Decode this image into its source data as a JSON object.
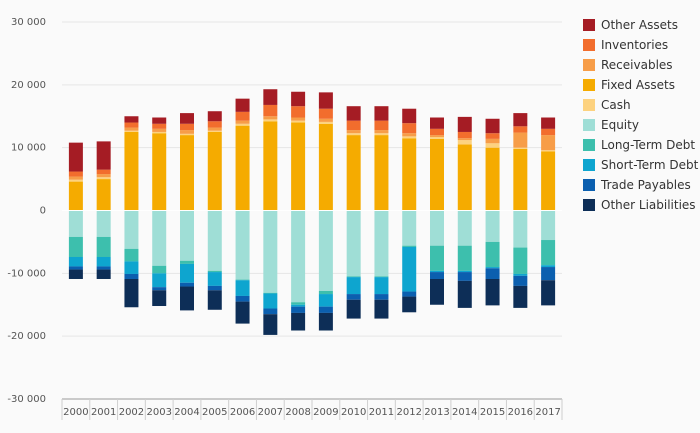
{
  "chart_data": {
    "type": "bar",
    "stacked": true,
    "categories": [
      "2000",
      "2001",
      "2002",
      "2003",
      "2004",
      "2005",
      "2006",
      "2007",
      "2008",
      "2009",
      "2010",
      "2011",
      "2012",
      "2013",
      "2014",
      "2015",
      "2016",
      "2017"
    ],
    "ylim": [
      -30000,
      30000
    ],
    "yticks": [
      -30000,
      -20000,
      -10000,
      0,
      10000,
      20000,
      30000
    ],
    "ytick_labels": [
      "-30 000",
      "-20 000",
      "-10 000",
      "0",
      "10 000",
      "20 000",
      "30 000"
    ],
    "grid": true,
    "legend_position": "right",
    "legend_order": [
      "Other Assets",
      "Inventories",
      "Receivables",
      "Fixed Assets",
      "Cash",
      "Equity",
      "Long-Term Debt",
      "Short-Term Debt",
      "Trade Payables",
      "Other Liabilities"
    ],
    "positive_series": [
      {
        "name": "Fixed Assets",
        "color": "#f5ab00",
        "values": [
          4600,
          5000,
          12500,
          12300,
          12000,
          12500,
          13500,
          14200,
          14000,
          13800,
          12000,
          12000,
          11500,
          11400,
          10500,
          10000,
          9800,
          9400
        ]
      },
      {
        "name": "Cash",
        "color": "#fdd27f",
        "values": [
          300,
          300,
          200,
          200,
          200,
          200,
          300,
          300,
          300,
          300,
          300,
          300,
          300,
          300,
          700,
          700,
          200,
          200
        ]
      },
      {
        "name": "Receivables",
        "color": "#f79d48",
        "values": [
          500,
          500,
          500,
          500,
          600,
          500,
          500,
          500,
          500,
          500,
          500,
          500,
          500,
          300,
          300,
          700,
          2400,
          2400
        ]
      },
      {
        "name": "Inventories",
        "color": "#f26d2d",
        "values": [
          800,
          700,
          800,
          800,
          1000,
          1000,
          1400,
          1800,
          1800,
          1600,
          1500,
          1500,
          1600,
          1000,
          1000,
          900,
          1000,
          1000
        ]
      },
      {
        "name": "Other Assets",
        "color": "#a51c24",
        "values": [
          4600,
          4500,
          1000,
          1000,
          1700,
          1600,
          2100,
          2500,
          2300,
          2600,
          2300,
          2300,
          2300,
          1800,
          2400,
          2300,
          2100,
          1800
        ]
      }
    ],
    "negative_series": [
      {
        "name": "Equity",
        "color": "#9fded6",
        "values": [
          -4200,
          -4200,
          -6100,
          -8800,
          -8000,
          -9600,
          -11000,
          -13100,
          -14600,
          -12800,
          -10500,
          -10500,
          -5600,
          -5600,
          -5600,
          -5000,
          -5900,
          -4700
        ]
      },
      {
        "name": "Long-Term Debt",
        "color": "#3dbfad",
        "values": [
          -3200,
          -3200,
          -2000,
          -1200,
          -500,
          -200,
          -100,
          -100,
          -400,
          -500,
          -100,
          -100,
          -200,
          -4000,
          -4000,
          -4000,
          -4200,
          -4000
        ]
      },
      {
        "name": "Short-Term Debt",
        "color": "#0ea5cf",
        "values": [
          -1500,
          -1500,
          -2000,
          -2200,
          -3000,
          -2200,
          -2500,
          -2400,
          -300,
          -2000,
          -2700,
          -2700,
          -7100,
          -200,
          -200,
          -200,
          -300,
          -300
        ]
      },
      {
        "name": "Trade Payables",
        "color": "#0b5faf",
        "values": [
          -500,
          -500,
          -800,
          -500,
          -600,
          -700,
          -900,
          -900,
          -1000,
          -1000,
          -900,
          -900,
          -800,
          -1100,
          -1400,
          -1700,
          -1600,
          -2100
        ]
      },
      {
        "name": "Other Liabilities",
        "color": "#0d2e57",
        "values": [
          -1500,
          -1500,
          -4500,
          -2500,
          -3800,
          -3100,
          -3500,
          -3300,
          -2800,
          -2800,
          -3000,
          -3000,
          -2500,
          -4100,
          -4300,
          -4200,
          -3500,
          -4000
        ]
      }
    ]
  }
}
